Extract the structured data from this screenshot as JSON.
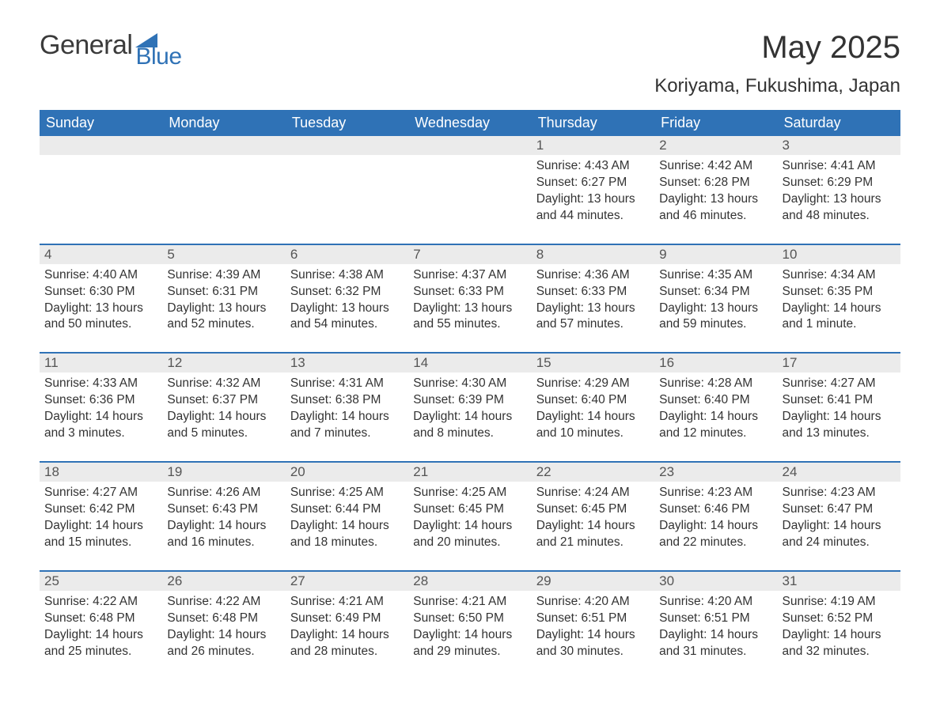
{
  "logo": {
    "word1": "General",
    "word2": "Blue",
    "accent_color": "#2f72b6"
  },
  "title": "May 2025",
  "location": "Koriyama, Fukushima, Japan",
  "colors": {
    "header_bg": "#2f72b6",
    "header_text": "#ffffff",
    "daynum_bg": "#ebebeb",
    "daynum_text": "#555555",
    "body_text": "#333333",
    "row_divider": "#2f72b6",
    "page_bg": "#ffffff"
  },
  "typography": {
    "title_fontsize": 40,
    "location_fontsize": 24,
    "header_fontsize": 18,
    "daynum_fontsize": 17,
    "body_fontsize": 15.5,
    "font_family": "Arial"
  },
  "layout": {
    "columns": 7,
    "rows": 5,
    "leading_blank_cells": 4
  },
  "weekdays": [
    "Sunday",
    "Monday",
    "Tuesday",
    "Wednesday",
    "Thursday",
    "Friday",
    "Saturday"
  ],
  "days": [
    {
      "n": "1",
      "sunrise": "Sunrise: 4:43 AM",
      "sunset": "Sunset: 6:27 PM",
      "day1": "Daylight: 13 hours",
      "day2": "and 44 minutes."
    },
    {
      "n": "2",
      "sunrise": "Sunrise: 4:42 AM",
      "sunset": "Sunset: 6:28 PM",
      "day1": "Daylight: 13 hours",
      "day2": "and 46 minutes."
    },
    {
      "n": "3",
      "sunrise": "Sunrise: 4:41 AM",
      "sunset": "Sunset: 6:29 PM",
      "day1": "Daylight: 13 hours",
      "day2": "and 48 minutes."
    },
    {
      "n": "4",
      "sunrise": "Sunrise: 4:40 AM",
      "sunset": "Sunset: 6:30 PM",
      "day1": "Daylight: 13 hours",
      "day2": "and 50 minutes."
    },
    {
      "n": "5",
      "sunrise": "Sunrise: 4:39 AM",
      "sunset": "Sunset: 6:31 PM",
      "day1": "Daylight: 13 hours",
      "day2": "and 52 minutes."
    },
    {
      "n": "6",
      "sunrise": "Sunrise: 4:38 AM",
      "sunset": "Sunset: 6:32 PM",
      "day1": "Daylight: 13 hours",
      "day2": "and 54 minutes."
    },
    {
      "n": "7",
      "sunrise": "Sunrise: 4:37 AM",
      "sunset": "Sunset: 6:33 PM",
      "day1": "Daylight: 13 hours",
      "day2": "and 55 minutes."
    },
    {
      "n": "8",
      "sunrise": "Sunrise: 4:36 AM",
      "sunset": "Sunset: 6:33 PM",
      "day1": "Daylight: 13 hours",
      "day2": "and 57 minutes."
    },
    {
      "n": "9",
      "sunrise": "Sunrise: 4:35 AM",
      "sunset": "Sunset: 6:34 PM",
      "day1": "Daylight: 13 hours",
      "day2": "and 59 minutes."
    },
    {
      "n": "10",
      "sunrise": "Sunrise: 4:34 AM",
      "sunset": "Sunset: 6:35 PM",
      "day1": "Daylight: 14 hours",
      "day2": "and 1 minute."
    },
    {
      "n": "11",
      "sunrise": "Sunrise: 4:33 AM",
      "sunset": "Sunset: 6:36 PM",
      "day1": "Daylight: 14 hours",
      "day2": "and 3 minutes."
    },
    {
      "n": "12",
      "sunrise": "Sunrise: 4:32 AM",
      "sunset": "Sunset: 6:37 PM",
      "day1": "Daylight: 14 hours",
      "day2": "and 5 minutes."
    },
    {
      "n": "13",
      "sunrise": "Sunrise: 4:31 AM",
      "sunset": "Sunset: 6:38 PM",
      "day1": "Daylight: 14 hours",
      "day2": "and 7 minutes."
    },
    {
      "n": "14",
      "sunrise": "Sunrise: 4:30 AM",
      "sunset": "Sunset: 6:39 PM",
      "day1": "Daylight: 14 hours",
      "day2": "and 8 minutes."
    },
    {
      "n": "15",
      "sunrise": "Sunrise: 4:29 AM",
      "sunset": "Sunset: 6:40 PM",
      "day1": "Daylight: 14 hours",
      "day2": "and 10 minutes."
    },
    {
      "n": "16",
      "sunrise": "Sunrise: 4:28 AM",
      "sunset": "Sunset: 6:40 PM",
      "day1": "Daylight: 14 hours",
      "day2": "and 12 minutes."
    },
    {
      "n": "17",
      "sunrise": "Sunrise: 4:27 AM",
      "sunset": "Sunset: 6:41 PM",
      "day1": "Daylight: 14 hours",
      "day2": "and 13 minutes."
    },
    {
      "n": "18",
      "sunrise": "Sunrise: 4:27 AM",
      "sunset": "Sunset: 6:42 PM",
      "day1": "Daylight: 14 hours",
      "day2": "and 15 minutes."
    },
    {
      "n": "19",
      "sunrise": "Sunrise: 4:26 AM",
      "sunset": "Sunset: 6:43 PM",
      "day1": "Daylight: 14 hours",
      "day2": "and 16 minutes."
    },
    {
      "n": "20",
      "sunrise": "Sunrise: 4:25 AM",
      "sunset": "Sunset: 6:44 PM",
      "day1": "Daylight: 14 hours",
      "day2": "and 18 minutes."
    },
    {
      "n": "21",
      "sunrise": "Sunrise: 4:25 AM",
      "sunset": "Sunset: 6:45 PM",
      "day1": "Daylight: 14 hours",
      "day2": "and 20 minutes."
    },
    {
      "n": "22",
      "sunrise": "Sunrise: 4:24 AM",
      "sunset": "Sunset: 6:45 PM",
      "day1": "Daylight: 14 hours",
      "day2": "and 21 minutes."
    },
    {
      "n": "23",
      "sunrise": "Sunrise: 4:23 AM",
      "sunset": "Sunset: 6:46 PM",
      "day1": "Daylight: 14 hours",
      "day2": "and 22 minutes."
    },
    {
      "n": "24",
      "sunrise": "Sunrise: 4:23 AM",
      "sunset": "Sunset: 6:47 PM",
      "day1": "Daylight: 14 hours",
      "day2": "and 24 minutes."
    },
    {
      "n": "25",
      "sunrise": "Sunrise: 4:22 AM",
      "sunset": "Sunset: 6:48 PM",
      "day1": "Daylight: 14 hours",
      "day2": "and 25 minutes."
    },
    {
      "n": "26",
      "sunrise": "Sunrise: 4:22 AM",
      "sunset": "Sunset: 6:48 PM",
      "day1": "Daylight: 14 hours",
      "day2": "and 26 minutes."
    },
    {
      "n": "27",
      "sunrise": "Sunrise: 4:21 AM",
      "sunset": "Sunset: 6:49 PM",
      "day1": "Daylight: 14 hours",
      "day2": "and 28 minutes."
    },
    {
      "n": "28",
      "sunrise": "Sunrise: 4:21 AM",
      "sunset": "Sunset: 6:50 PM",
      "day1": "Daylight: 14 hours",
      "day2": "and 29 minutes."
    },
    {
      "n": "29",
      "sunrise": "Sunrise: 4:20 AM",
      "sunset": "Sunset: 6:51 PM",
      "day1": "Daylight: 14 hours",
      "day2": "and 30 minutes."
    },
    {
      "n": "30",
      "sunrise": "Sunrise: 4:20 AM",
      "sunset": "Sunset: 6:51 PM",
      "day1": "Daylight: 14 hours",
      "day2": "and 31 minutes."
    },
    {
      "n": "31",
      "sunrise": "Sunrise: 4:19 AM",
      "sunset": "Sunset: 6:52 PM",
      "day1": "Daylight: 14 hours",
      "day2": "and 32 minutes."
    }
  ]
}
